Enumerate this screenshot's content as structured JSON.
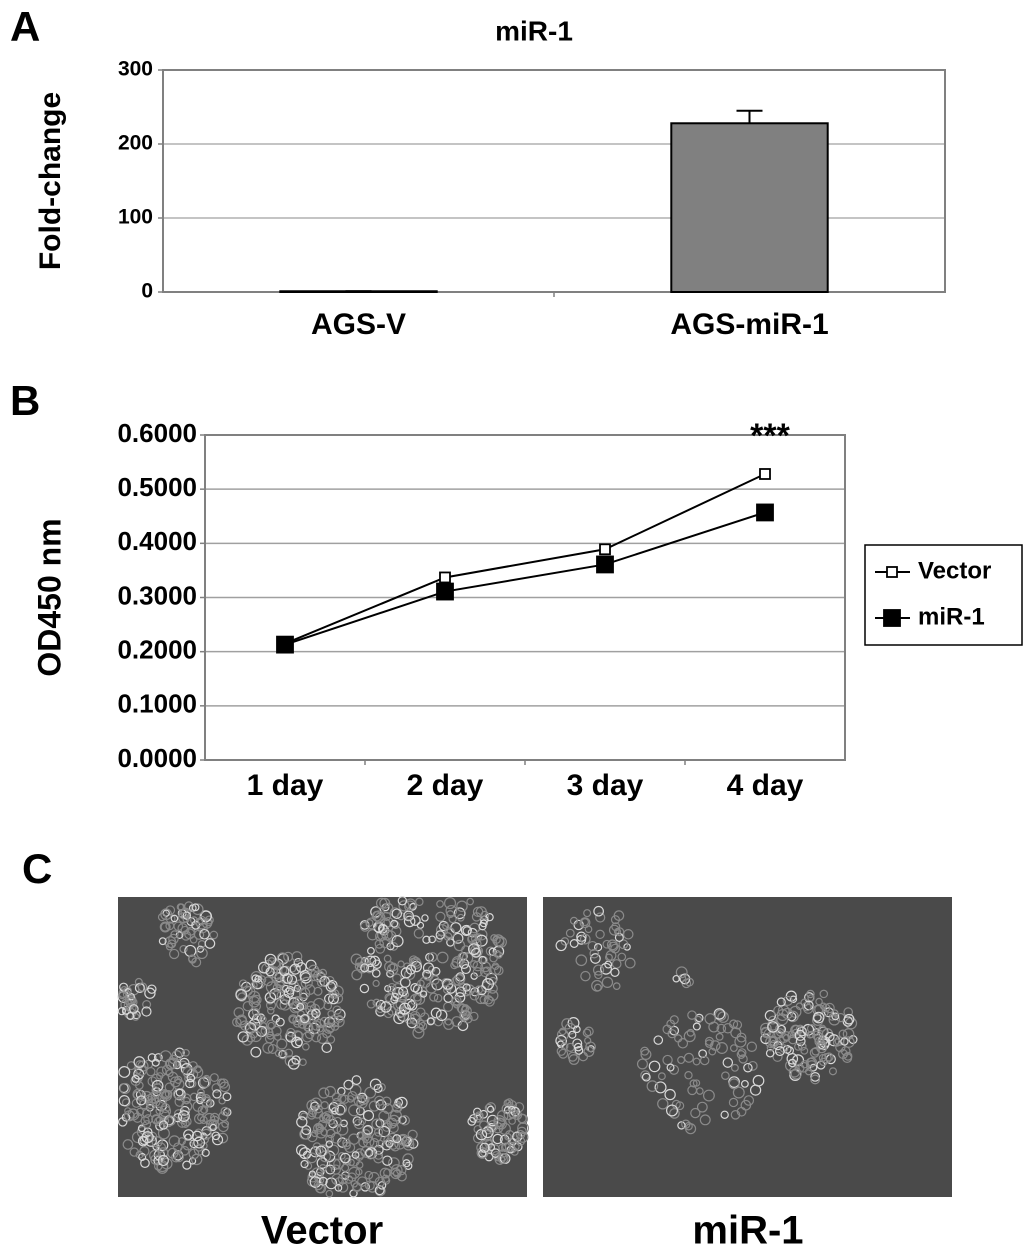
{
  "chart_data": [
    {
      "type": "bar",
      "panel_label": "A",
      "title": "miR-1",
      "y_label": "Fold-change",
      "categories": [
        "AGS-V",
        "AGS-miR-1"
      ],
      "values": [
        1,
        228
      ],
      "errors": [
        0,
        17
      ],
      "color": "#808080",
      "ylim": [
        0,
        300
      ],
      "yticks": [
        0,
        100,
        200,
        300
      ],
      "grid": true
    },
    {
      "type": "line",
      "panel_label": "B",
      "y_label": "OD450 nm",
      "categories": [
        "1 day",
        "2 day",
        "3 day",
        "4 day"
      ],
      "series": [
        {
          "name": "Vector",
          "color": "#000000",
          "marker": "open-square",
          "values": [
            0.215,
            0.337,
            0.389,
            0.528
          ]
        },
        {
          "name": "miR-1",
          "color": "#000000",
          "marker": "filled-square",
          "values": [
            0.213,
            0.311,
            0.361,
            0.457
          ]
        }
      ],
      "ylim": [
        0,
        0.6
      ],
      "yticks": [
        {
          "value": 0,
          "label": "0.0000"
        },
        {
          "value": 0.1,
          "label": "0.1000"
        },
        {
          "value": 0.2,
          "label": "0.2000"
        },
        {
          "value": 0.3,
          "label": "0.3000"
        },
        {
          "value": 0.4,
          "label": "0.4000"
        },
        {
          "value": 0.5,
          "label": "0.5000"
        },
        {
          "value": 0.6,
          "label": "0.6000"
        }
      ],
      "grid": true,
      "legend": "right",
      "annotation": "***"
    }
  ],
  "panel_c": {
    "panel_label": "C",
    "images": [
      {
        "caption": "Vector"
      },
      {
        "caption": "miR-1"
      }
    ]
  }
}
